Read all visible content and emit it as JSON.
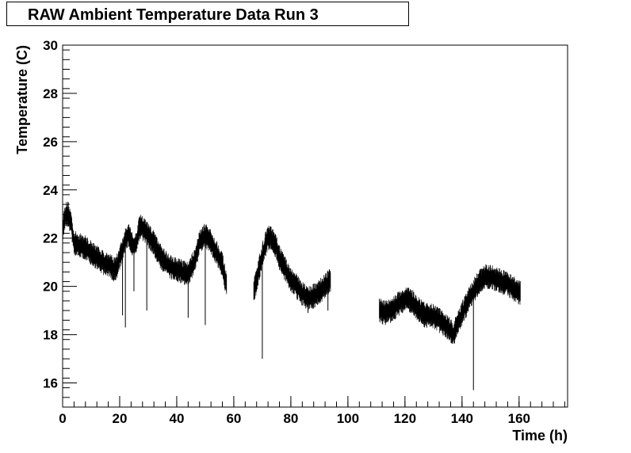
{
  "chart_data": {
    "type": "scatter",
    "title": "RAW Ambient Temperature Data Run 3",
    "xlabel": "Time (h)",
    "ylabel": "Temperature (C)",
    "xlim": [
      0,
      177
    ],
    "ylim": [
      15,
      30
    ],
    "x_ticks": [
      0,
      20,
      40,
      60,
      80,
      100,
      120,
      140,
      160
    ],
    "y_ticks": [
      16,
      18,
      20,
      22,
      24,
      26,
      28,
      30
    ],
    "grid": false,
    "legend": "none",
    "color": "#000000",
    "band_width": 0.35,
    "segments": [
      {
        "x": [
          0,
          1,
          2,
          3,
          4,
          6,
          8,
          10,
          12,
          14,
          16,
          18,
          19,
          20,
          21,
          22,
          23,
          24,
          25,
          26,
          27,
          28,
          29,
          30,
          32,
          34,
          36,
          38,
          40,
          42,
          44,
          46,
          47,
          48,
          49,
          50,
          51,
          52,
          54,
          56,
          57.5
        ],
        "y": [
          22.4,
          23.0,
          23.0,
          22.6,
          21.8,
          21.7,
          21.6,
          21.4,
          21.2,
          21.0,
          20.9,
          20.7,
          20.8,
          21.2,
          21.5,
          21.9,
          22.2,
          21.9,
          21.6,
          21.8,
          22.5,
          22.4,
          22.3,
          22.1,
          21.8,
          21.3,
          21.0,
          20.8,
          20.7,
          20.6,
          20.5,
          21.0,
          21.4,
          21.8,
          22.0,
          22.1,
          22.0,
          21.8,
          21.4,
          20.9,
          20.0
        ]
      },
      {
        "x": [
          67,
          68,
          69,
          70,
          71,
          72,
          73,
          74,
          75,
          76,
          78,
          80,
          82,
          84,
          86,
          88,
          90,
          92,
          94
        ],
        "y": [
          19.8,
          20.2,
          20.8,
          21.3,
          21.7,
          22.0,
          22.0,
          21.8,
          21.6,
          21.2,
          20.7,
          20.3,
          20.0,
          19.7,
          19.5,
          19.6,
          19.8,
          20.0,
          20.3
        ]
      },
      {
        "x": [
          111,
          113,
          115,
          117,
          119,
          121,
          123,
          125,
          127,
          129,
          131,
          133,
          135,
          137
        ],
        "y": [
          19.0,
          18.9,
          19.0,
          19.2,
          19.4,
          19.5,
          19.3,
          19.0,
          18.8,
          18.8,
          18.7,
          18.5,
          18.3,
          18.0
        ]
      },
      {
        "x": [
          137,
          139,
          141,
          143,
          145,
          147,
          148,
          150,
          152,
          154,
          156,
          158,
          160.5
        ],
        "y": [
          18.0,
          18.6,
          19.1,
          19.6,
          20.0,
          20.3,
          20.4,
          20.4,
          20.3,
          20.2,
          20.1,
          19.9,
          19.7
        ]
      }
    ],
    "spikes": [
      {
        "x": 21,
        "y": 18.8
      },
      {
        "x": 22,
        "y": 18.3
      },
      {
        "x": 25,
        "y": 19.8
      },
      {
        "x": 29.5,
        "y": 19.0
      },
      {
        "x": 44,
        "y": 18.7
      },
      {
        "x": 50,
        "y": 18.4
      },
      {
        "x": 70,
        "y": 17.0
      },
      {
        "x": 86,
        "y": 18.9
      },
      {
        "x": 93,
        "y": 19.0
      },
      {
        "x": 144,
        "y": 15.7
      }
    ]
  }
}
